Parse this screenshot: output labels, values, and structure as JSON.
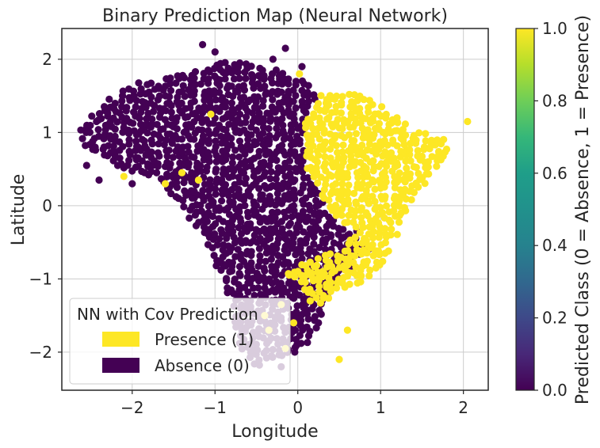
{
  "chart_data": {
    "type": "scatter",
    "title": "Binary Prediction Map (Neural Network)",
    "xlabel": "Longitude",
    "ylabel": "Latitude",
    "xlim": [
      -2.85,
      2.3
    ],
    "ylim": [
      -2.52,
      2.42
    ],
    "xticks": [
      -2,
      -1,
      0,
      1,
      2
    ],
    "xtick_labels": [
      "−2",
      "−1",
      "0",
      "1",
      "2"
    ],
    "yticks": [
      -2,
      -1,
      0,
      1,
      2
    ],
    "ytick_labels": [
      "−2",
      "−1",
      "0",
      "1",
      "2"
    ],
    "grid": true,
    "colormap": "viridis",
    "colors": {
      "presence": "#fde725",
      "absence": "#440154",
      "axes": "#262626",
      "grid": "#cccccc"
    },
    "colorbar": {
      "label": "Predicted Class (0 = Absence, 1 = Presence)",
      "range": [
        0,
        1
      ],
      "ticks": [
        0.0,
        0.2,
        0.4,
        0.6,
        0.8,
        1.0
      ],
      "tick_labels": [
        "0.0",
        "0.2",
        "0.4",
        "0.6",
        "0.8",
        "1.0"
      ]
    },
    "legend": {
      "title": "NN with Cov Prediction",
      "placement": "lower-left",
      "entries": [
        {
          "label": "Presence (1)",
          "color": "#fde725"
        },
        {
          "label": "Absence (0)",
          "color": "#440154"
        }
      ]
    },
    "series": [
      {
        "value": 0,
        "region": [
          [
            -2.6,
            1.1
          ],
          [
            -2.3,
            1.45
          ],
          [
            -1.9,
            1.7
          ],
          [
            -1.2,
            1.85
          ],
          [
            -0.9,
            2.0
          ],
          [
            -0.4,
            1.9
          ],
          [
            -0.1,
            1.8
          ],
          [
            0.1,
            1.7
          ],
          [
            0.25,
            1.5
          ],
          [
            0.1,
            1.2
          ],
          [
            0.05,
            0.9
          ],
          [
            0.1,
            0.5
          ],
          [
            0.25,
            0.2
          ],
          [
            0.45,
            -0.2
          ],
          [
            0.75,
            -0.35
          ],
          [
            0.9,
            -0.55
          ],
          [
            0.6,
            -0.9
          ],
          [
            0.4,
            -1.2
          ],
          [
            0.3,
            -1.5
          ],
          [
            0.15,
            -1.85
          ],
          [
            0.0,
            -2.0
          ],
          [
            -0.35,
            -2.1
          ],
          [
            -0.55,
            -2.25
          ],
          [
            -0.7,
            -1.9
          ],
          [
            -0.8,
            -1.4
          ],
          [
            -0.9,
            -1.0
          ],
          [
            -1.2,
            -0.4
          ],
          [
            -1.5,
            0.1
          ],
          [
            -1.8,
            0.4
          ],
          [
            -2.1,
            0.5
          ],
          [
            -2.5,
            0.7
          ],
          [
            -2.65,
            0.95
          ]
        ],
        "points": [
          [
            -1.0,
            2.1
          ],
          [
            -1.15,
            2.2
          ],
          [
            -0.3,
            2.0
          ],
          [
            -0.15,
            2.15
          ],
          [
            0.05,
            1.9
          ],
          [
            -2.55,
            0.55
          ],
          [
            -2.4,
            0.35
          ],
          [
            -2.0,
            0.3
          ],
          [
            -1.85,
            0.45
          ],
          [
            -0.2,
            -2.2
          ],
          [
            0.25,
            -1.6
          ]
        ]
      },
      {
        "value": 1,
        "region": [
          [
            0.1,
            1.2
          ],
          [
            0.25,
            1.5
          ],
          [
            0.5,
            1.55
          ],
          [
            0.8,
            1.5
          ],
          [
            1.1,
            1.3
          ],
          [
            1.4,
            1.05
          ],
          [
            1.75,
            0.95
          ],
          [
            1.85,
            0.75
          ],
          [
            1.7,
            0.5
          ],
          [
            1.55,
            0.3
          ],
          [
            1.35,
            0.05
          ],
          [
            1.2,
            -0.4
          ],
          [
            1.05,
            -0.75
          ],
          [
            0.8,
            -1.05
          ],
          [
            0.5,
            -1.2
          ],
          [
            0.25,
            -1.35
          ],
          [
            0.0,
            -1.1
          ],
          [
            -0.2,
            -0.9
          ],
          [
            0.15,
            -0.75
          ],
          [
            0.5,
            -0.6
          ],
          [
            0.75,
            -0.35
          ],
          [
            0.45,
            -0.2
          ],
          [
            0.25,
            0.2
          ],
          [
            0.1,
            0.5
          ],
          [
            0.05,
            0.9
          ]
        ],
        "points": [
          [
            2.05,
            1.15
          ],
          [
            0.02,
            1.8
          ],
          [
            -1.05,
            1.25
          ],
          [
            -1.6,
            0.3
          ],
          [
            -1.4,
            0.45
          ],
          [
            -2.1,
            0.4
          ],
          [
            -0.15,
            -1.95
          ],
          [
            -0.35,
            -1.7
          ],
          [
            0.15,
            -1.3
          ],
          [
            -0.2,
            -1.35
          ],
          [
            0.35,
            1.45
          ],
          [
            -0.4,
            -1.5
          ],
          [
            0.5,
            -2.1
          ],
          [
            -0.05,
            -1.6
          ],
          [
            0.3,
            -0.9
          ],
          [
            -1.2,
            0.35
          ],
          [
            0.6,
            -1.7
          ]
        ]
      }
    ]
  }
}
